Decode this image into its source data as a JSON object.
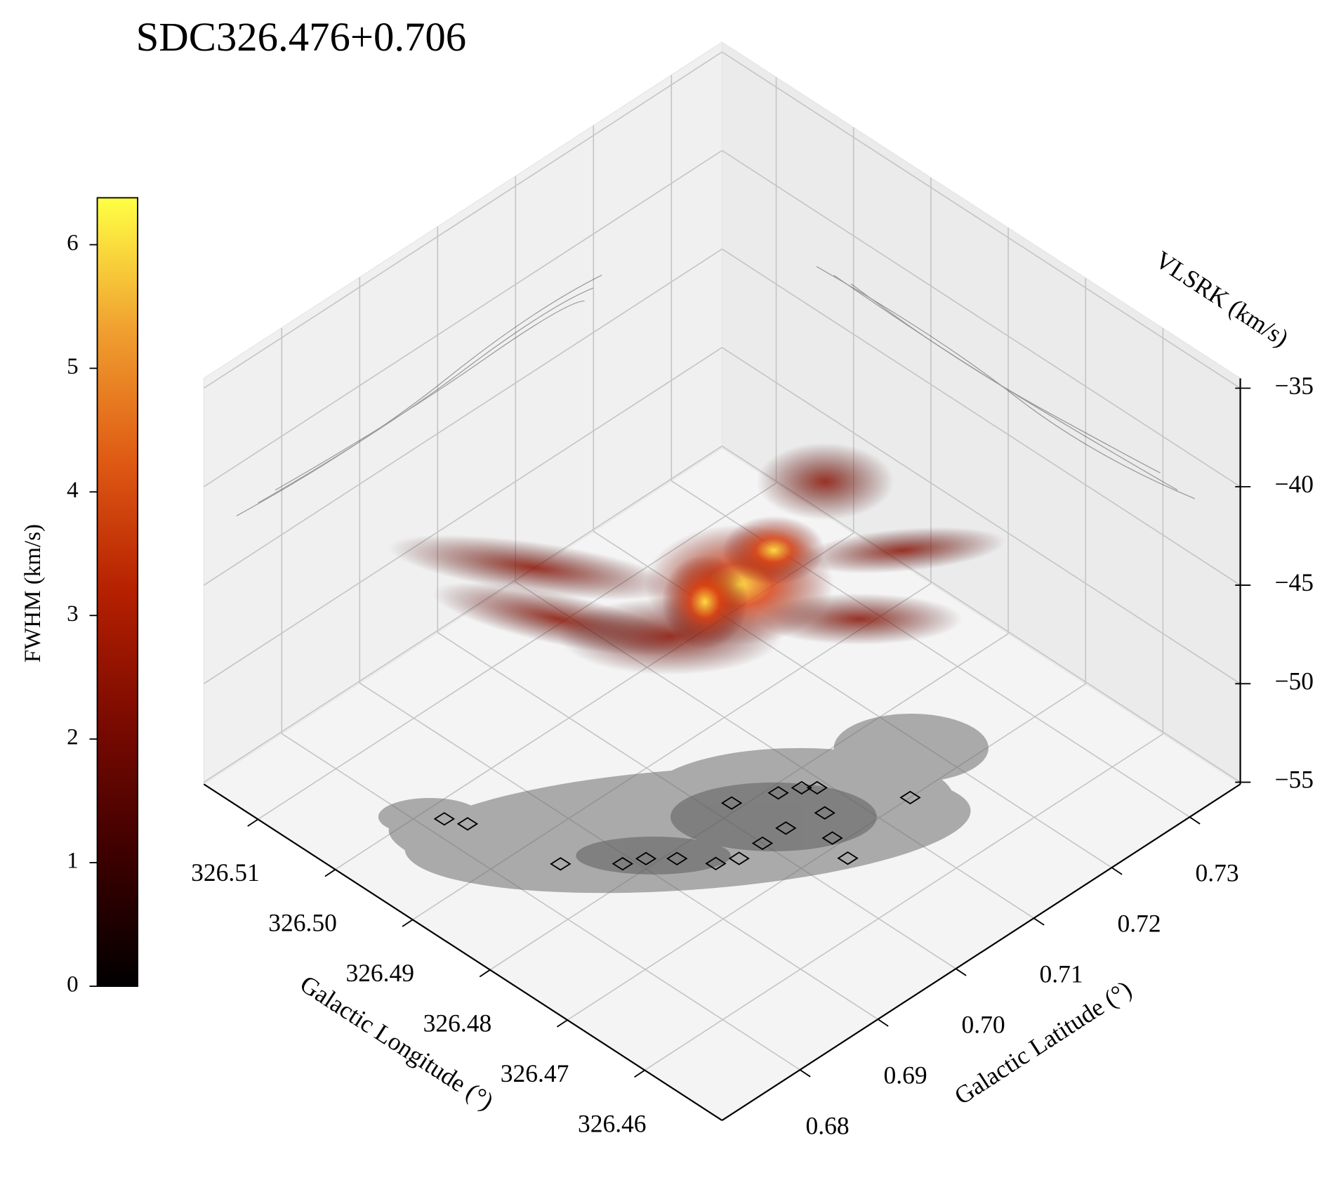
{
  "chart_data": {
    "type": "scatter3d",
    "title": "SDC326.476+0.706",
    "x_label": "Galactic Longitude (°)",
    "y_label": "Galactic Latitude (°)",
    "z_label": "VLSRK (km/s)",
    "xlim": [
      326.517,
      326.45
    ],
    "xticks": [
      326.51,
      {
        "value": 326.5,
        "label": "326.50"
      },
      326.49,
      326.48,
      326.47,
      326.46
    ],
    "ylim": [
      0.67,
      0.7365
    ],
    "yticks": [
      0.68,
      0.69,
      {
        "value": 0.7,
        "label": "0.70"
      },
      0.71,
      0.72,
      0.73
    ],
    "zlim": [
      -55.1,
      -34.5
    ],
    "zticks": [
      {
        "value": -35,
        "label": "−35"
      },
      {
        "value": -40,
        "label": "−40"
      },
      {
        "value": -45,
        "label": "−45"
      },
      {
        "value": -50,
        "label": "−50"
      },
      {
        "value": -55,
        "label": "−55"
      }
    ],
    "grid": true,
    "colorbar": {
      "label": "FWHM (km/s)",
      "lim": [
        0,
        6.38
      ],
      "ticks": [
        0,
        1,
        2,
        3,
        4,
        5,
        6
      ],
      "colors": [
        "#000000",
        "#3d0000",
        "#7a0a00",
        "#b52000",
        "#df5a14",
        "#f0a030",
        "#ffff44"
      ]
    },
    "series": [
      {
        "marker": "diamond",
        "color": "#000000",
        "x": [
          326.498,
          326.496,
          326.486,
          326.482,
          326.481,
          326.479,
          326.476,
          326.475,
          326.475,
          326.475,
          326.481,
          326.479,
          326.478,
          326.477,
          326.474,
          326.471,
          326.468,
          326.47
        ],
        "y": [
          0.682,
          0.683,
          0.685,
          0.689,
          0.691,
          0.693,
          0.695,
          0.697,
          0.7,
          0.703,
          0.702,
          0.706,
          0.708,
          0.709,
          0.707,
          0.705,
          0.704,
          0.714
        ]
      }
    ]
  }
}
